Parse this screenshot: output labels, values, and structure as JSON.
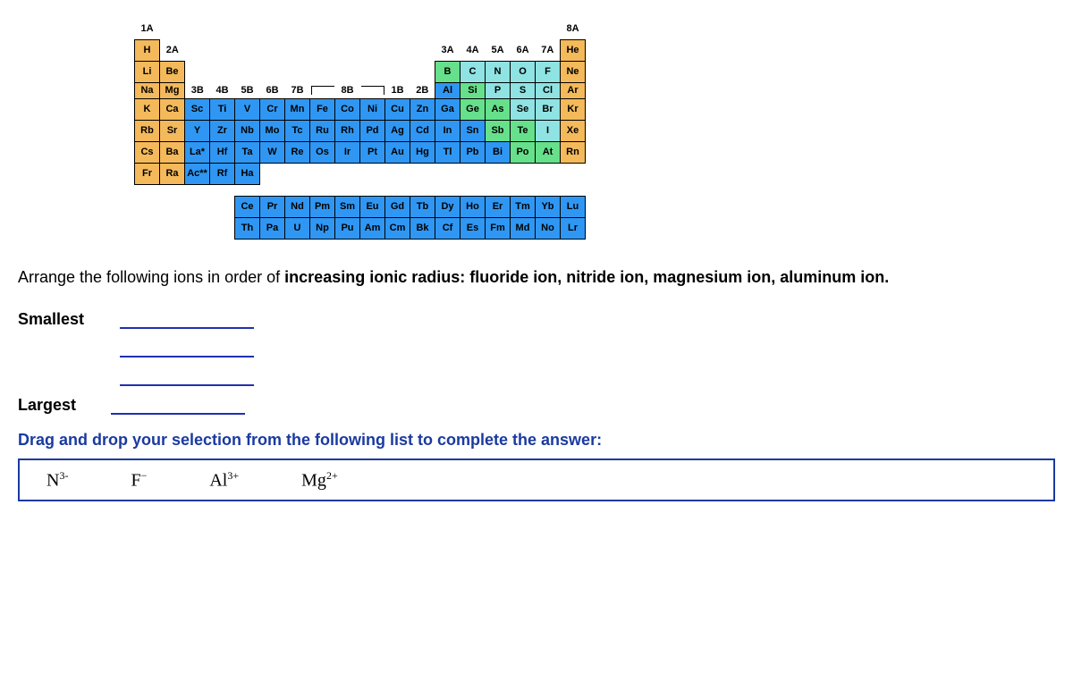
{
  "periodic_table": {
    "group_labels_top": {
      "c0": "1A",
      "c17": "8A"
    },
    "group_labels_r2": {
      "c1": "2A",
      "c12": "3A",
      "c13": "4A",
      "c14": "5A",
      "c15": "6A",
      "c16": "7A"
    },
    "group_labels_r4": {
      "c2": "3B",
      "c3": "4B",
      "c4": "5B",
      "c5": "6B",
      "c6": "7B",
      "c8": "8B",
      "c10": "1B",
      "c11": "2B"
    },
    "rows": [
      [
        {
          "s": "H",
          "c": "orange"
        },
        null,
        null,
        null,
        null,
        null,
        null,
        null,
        null,
        null,
        null,
        null,
        null,
        null,
        null,
        null,
        null,
        {
          "s": "He",
          "c": "orange"
        }
      ],
      [
        {
          "s": "Li",
          "c": "orange"
        },
        {
          "s": "Be",
          "c": "orange"
        },
        null,
        null,
        null,
        null,
        null,
        null,
        null,
        null,
        null,
        null,
        {
          "s": "B",
          "c": "green"
        },
        {
          "s": "C",
          "c": "cyan"
        },
        {
          "s": "N",
          "c": "cyan"
        },
        {
          "s": "O",
          "c": "cyan"
        },
        {
          "s": "F",
          "c": "cyan"
        },
        {
          "s": "Ne",
          "c": "orange"
        }
      ],
      [
        {
          "s": "Na",
          "c": "orange"
        },
        {
          "s": "Mg",
          "c": "orange"
        },
        null,
        null,
        null,
        null,
        null,
        null,
        null,
        null,
        null,
        null,
        {
          "s": "Al",
          "c": "blue"
        },
        {
          "s": "Si",
          "c": "green"
        },
        {
          "s": "P",
          "c": "cyan"
        },
        {
          "s": "S",
          "c": "cyan"
        },
        {
          "s": "Cl",
          "c": "cyan"
        },
        {
          "s": "Ar",
          "c": "orange"
        }
      ],
      [
        {
          "s": "K",
          "c": "orange"
        },
        {
          "s": "Ca",
          "c": "orange"
        },
        {
          "s": "Sc",
          "c": "blue"
        },
        {
          "s": "Ti",
          "c": "blue"
        },
        {
          "s": "V",
          "c": "blue"
        },
        {
          "s": "Cr",
          "c": "blue"
        },
        {
          "s": "Mn",
          "c": "blue"
        },
        {
          "s": "Fe",
          "c": "blue"
        },
        {
          "s": "Co",
          "c": "blue"
        },
        {
          "s": "Ni",
          "c": "blue"
        },
        {
          "s": "Cu",
          "c": "blue"
        },
        {
          "s": "Zn",
          "c": "blue"
        },
        {
          "s": "Ga",
          "c": "blue"
        },
        {
          "s": "Ge",
          "c": "green"
        },
        {
          "s": "As",
          "c": "green"
        },
        {
          "s": "Se",
          "c": "cyan"
        },
        {
          "s": "Br",
          "c": "cyan"
        },
        {
          "s": "Kr",
          "c": "orange"
        }
      ],
      [
        {
          "s": "Rb",
          "c": "orange"
        },
        {
          "s": "Sr",
          "c": "orange"
        },
        {
          "s": "Y",
          "c": "blue"
        },
        {
          "s": "Zr",
          "c": "blue"
        },
        {
          "s": "Nb",
          "c": "blue"
        },
        {
          "s": "Mo",
          "c": "blue"
        },
        {
          "s": "Tc",
          "c": "blue"
        },
        {
          "s": "Ru",
          "c": "blue"
        },
        {
          "s": "Rh",
          "c": "blue"
        },
        {
          "s": "Pd",
          "c": "blue"
        },
        {
          "s": "Ag",
          "c": "blue"
        },
        {
          "s": "Cd",
          "c": "blue"
        },
        {
          "s": "In",
          "c": "blue"
        },
        {
          "s": "Sn",
          "c": "blue"
        },
        {
          "s": "Sb",
          "c": "green"
        },
        {
          "s": "Te",
          "c": "green"
        },
        {
          "s": "I",
          "c": "cyan"
        },
        {
          "s": "Xe",
          "c": "orange"
        }
      ],
      [
        {
          "s": "Cs",
          "c": "orange"
        },
        {
          "s": "Ba",
          "c": "orange"
        },
        {
          "s": "La*",
          "c": "blue"
        },
        {
          "s": "Hf",
          "c": "blue"
        },
        {
          "s": "Ta",
          "c": "blue"
        },
        {
          "s": "W",
          "c": "blue"
        },
        {
          "s": "Re",
          "c": "blue"
        },
        {
          "s": "Os",
          "c": "blue"
        },
        {
          "s": "Ir",
          "c": "blue"
        },
        {
          "s": "Pt",
          "c": "blue"
        },
        {
          "s": "Au",
          "c": "blue"
        },
        {
          "s": "Hg",
          "c": "blue"
        },
        {
          "s": "Tl",
          "c": "blue"
        },
        {
          "s": "Pb",
          "c": "blue"
        },
        {
          "s": "Bi",
          "c": "blue"
        },
        {
          "s": "Po",
          "c": "green"
        },
        {
          "s": "At",
          "c": "green"
        },
        {
          "s": "Rn",
          "c": "orange"
        }
      ],
      [
        {
          "s": "Fr",
          "c": "orange"
        },
        {
          "s": "Ra",
          "c": "orange"
        },
        {
          "s": "Ac**",
          "c": "blue"
        },
        {
          "s": "Rf",
          "c": "blue"
        },
        {
          "s": "Ha",
          "c": "blue"
        },
        null,
        null,
        null,
        null,
        null,
        null,
        null,
        null,
        null,
        null,
        null,
        null,
        null
      ]
    ],
    "fblock": [
      [
        {
          "s": "Ce",
          "c": "blue"
        },
        {
          "s": "Pr",
          "c": "blue"
        },
        {
          "s": "Nd",
          "c": "blue"
        },
        {
          "s": "Pm",
          "c": "blue"
        },
        {
          "s": "Sm",
          "c": "blue"
        },
        {
          "s": "Eu",
          "c": "blue"
        },
        {
          "s": "Gd",
          "c": "blue"
        },
        {
          "s": "Tb",
          "c": "blue"
        },
        {
          "s": "Dy",
          "c": "blue"
        },
        {
          "s": "Ho",
          "c": "blue"
        },
        {
          "s": "Er",
          "c": "blue"
        },
        {
          "s": "Tm",
          "c": "blue"
        },
        {
          "s": "Yb",
          "c": "blue"
        },
        {
          "s": "Lu",
          "c": "blue"
        }
      ],
      [
        {
          "s": "Th",
          "c": "blue"
        },
        {
          "s": "Pa",
          "c": "blue"
        },
        {
          "s": "U",
          "c": "blue"
        },
        {
          "s": "Np",
          "c": "blue"
        },
        {
          "s": "Pu",
          "c": "blue"
        },
        {
          "s": "Am",
          "c": "blue"
        },
        {
          "s": "Cm",
          "c": "blue"
        },
        {
          "s": "Bk",
          "c": "blue"
        },
        {
          "s": "Cf",
          "c": "blue"
        },
        {
          "s": "Es",
          "c": "blue"
        },
        {
          "s": "Fm",
          "c": "blue"
        },
        {
          "s": "Md",
          "c": "blue"
        },
        {
          "s": "No",
          "c": "blue"
        },
        {
          "s": "Lr",
          "c": "blue"
        }
      ]
    ]
  },
  "question": {
    "prefix": "Arrange the following ions in order of ",
    "bold1": "increasing ionic radius: fluoride ion, nitride ion, magnesium ion, aluminum ion.",
    "smallest": "Smallest",
    "largest": "Largest"
  },
  "instruction": "Drag and drop your selection from the following list to complete the answer:",
  "choices": [
    {
      "base": "N",
      "sup": "3-"
    },
    {
      "base": "F",
      "sup": "−"
    },
    {
      "base": "Al",
      "sup": "3+"
    },
    {
      "base": "Mg",
      "sup": "2+"
    }
  ],
  "colors": {
    "orange": "#f4b95a",
    "blue": "#2f97f3",
    "green": "#66e08b",
    "cyan": "#8fe3e3",
    "link": "#1a3aa0",
    "underline": "#2030b0"
  }
}
